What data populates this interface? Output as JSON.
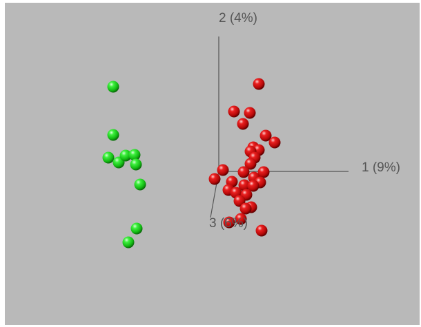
{
  "colors": {
    "background": "#b9b9b9",
    "axis": "#555555",
    "group_green": "#1fd51f",
    "group_red": "#d11010"
  },
  "chart_data": {
    "type": "scatter",
    "projection": "3d",
    "title": "",
    "axes": {
      "x": {
        "label": "1 (9%)"
      },
      "y": {
        "label": "2 (4%)"
      },
      "z": {
        "label": "3 (6%)"
      }
    },
    "grid": false,
    "legend": "none",
    "series": [
      {
        "color": "#1fd51f",
        "points": [
          {
            "x": -1.53,
            "y": 1.23
          },
          {
            "x": -1.53,
            "y": 0.53
          },
          {
            "x": -1.6,
            "y": 0.2
          },
          {
            "x": -1.45,
            "y": 0.13
          },
          {
            "x": -1.35,
            "y": 0.23
          },
          {
            "x": -1.22,
            "y": 0.24
          },
          {
            "x": -1.2,
            "y": 0.1
          },
          {
            "x": -1.14,
            "y": -0.19
          },
          {
            "x": -1.19,
            "y": -0.83
          },
          {
            "x": -1.31,
            "y": -1.03
          }
        ]
      },
      {
        "color": "#d11010",
        "points": [
          {
            "x": 0.58,
            "y": 1.27
          },
          {
            "x": 0.45,
            "y": 0.85
          },
          {
            "x": 0.22,
            "y": 0.87
          },
          {
            "x": 0.35,
            "y": 0.69
          },
          {
            "x": 0.68,
            "y": 0.52
          },
          {
            "x": 0.81,
            "y": 0.42
          },
          {
            "x": 0.5,
            "y": 0.35
          },
          {
            "x": 0.58,
            "y": 0.31
          },
          {
            "x": 0.46,
            "y": 0.29
          },
          {
            "x": 0.52,
            "y": 0.2
          },
          {
            "x": 0.46,
            "y": 0.11
          },
          {
            "x": 0.06,
            "y": 0.02
          },
          {
            "x": 0.36,
            "y": -0.01
          },
          {
            "x": 0.65,
            "y": -0.01
          },
          {
            "x": -0.06,
            "y": -0.11
          },
          {
            "x": 0.51,
            "y": -0.09
          },
          {
            "x": 0.6,
            "y": -0.16
          },
          {
            "x": 0.19,
            "y": -0.15
          },
          {
            "x": 0.37,
            "y": -0.2
          },
          {
            "x": 0.5,
            "y": -0.21
          },
          {
            "x": 0.14,
            "y": -0.27
          },
          {
            "x": 0.25,
            "y": -0.31
          },
          {
            "x": 0.4,
            "y": -0.34
          },
          {
            "x": 0.3,
            "y": -0.43
          },
          {
            "x": 0.47,
            "y": -0.52
          },
          {
            "x": 0.39,
            "y": -0.54
          },
          {
            "x": 0.32,
            "y": -0.69
          },
          {
            "x": 0.15,
            "y": -0.74
          },
          {
            "x": 0.62,
            "y": -0.86
          }
        ]
      }
    ]
  }
}
